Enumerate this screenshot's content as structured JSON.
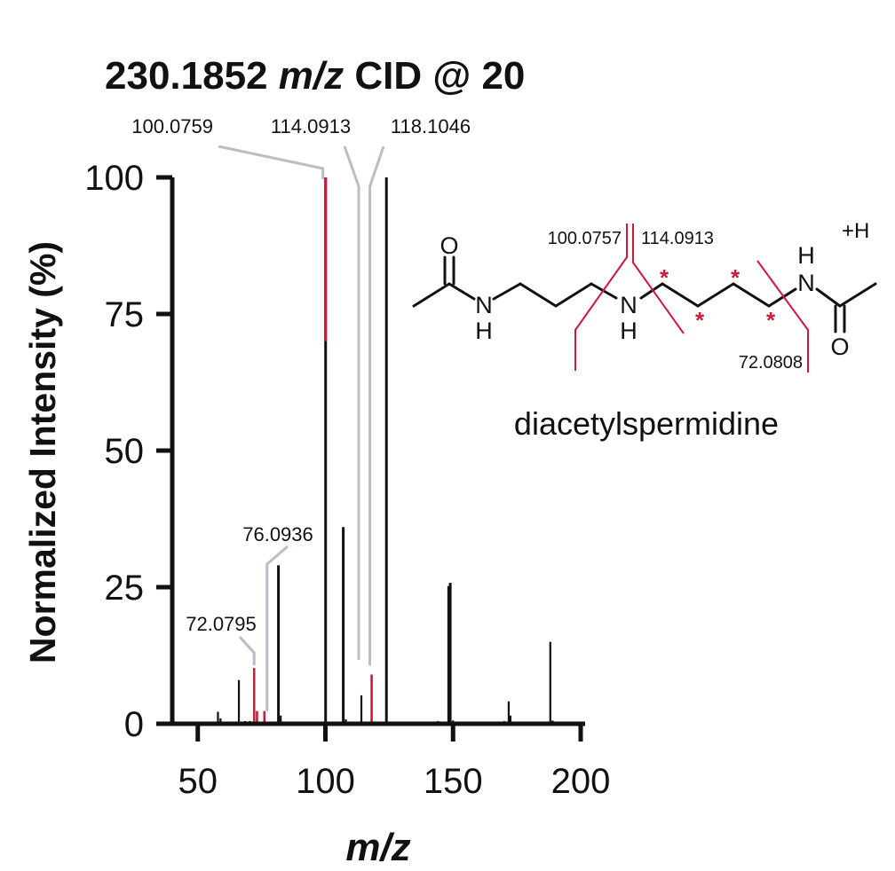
{
  "chart_data": {
    "type": "bar",
    "title": {
      "prefix": "230.1852 ",
      "italic": "m/z",
      "suffix": " CID @ 20"
    },
    "xlabel": "m/z",
    "ylabel": "Normalized Intensity (%)",
    "xlim": [
      40,
      200
    ],
    "ylim": [
      0,
      100
    ],
    "xticks": [
      50,
      100,
      150,
      200
    ],
    "yticks": [
      0,
      25,
      50,
      75,
      100
    ],
    "colors": {
      "peak": "#111111",
      "highlight": "#d0183c",
      "leader": "#b8bec6"
    },
    "peaks": [
      {
        "mz": 57.9,
        "intensity": 2.2,
        "highlight": 0
      },
      {
        "mz": 58.9,
        "intensity": 1.0,
        "highlight": 0
      },
      {
        "mz": 60.5,
        "intensity": 0.4,
        "highlight": 0
      },
      {
        "mz": 66.1,
        "intensity": 8.0,
        "highlight": 0
      },
      {
        "mz": 68.5,
        "intensity": 0.5,
        "highlight": 0
      },
      {
        "mz": 70.4,
        "intensity": 0.5,
        "highlight": 0
      },
      {
        "mz": 72.0795,
        "intensity": 10.2,
        "highlight": 10.2
      },
      {
        "mz": 73.2,
        "intensity": 2.3,
        "highlight": 2.3
      },
      {
        "mz": 76.0936,
        "intensity": 2.3,
        "highlight": 2.3
      },
      {
        "mz": 81.6,
        "intensity": 29.0,
        "highlight": 0
      },
      {
        "mz": 82.5,
        "intensity": 1.5,
        "highlight": 0
      },
      {
        "mz": 86.1,
        "intensity": 0.4,
        "highlight": 0
      },
      {
        "mz": 100.0759,
        "intensity": 100,
        "highlight": 30
      },
      {
        "mz": 103.1,
        "intensity": 0.3,
        "highlight": 0
      },
      {
        "mz": 107.0,
        "intensity": 36.0,
        "highlight": 0
      },
      {
        "mz": 108.0,
        "intensity": 0.8,
        "highlight": 0
      },
      {
        "mz": 110.1,
        "intensity": 0.4,
        "highlight": 0
      },
      {
        "mz": 113.0,
        "intensity": 0.4,
        "highlight": 0
      },
      {
        "mz": 114.0913,
        "intensity": 5.2,
        "highlight": 0
      },
      {
        "mz": 118.1046,
        "intensity": 9.0,
        "highlight": 9.0
      },
      {
        "mz": 123.9,
        "intensity": 100,
        "highlight": 0
      },
      {
        "mz": 129.0,
        "intensity": 0.4,
        "highlight": 0
      },
      {
        "mz": 133.0,
        "intensity": 0.4,
        "highlight": 0
      },
      {
        "mz": 138.1,
        "intensity": 0.4,
        "highlight": 0
      },
      {
        "mz": 144.1,
        "intensity": 0.5,
        "highlight": 0
      },
      {
        "mz": 148.3,
        "intensity": 25.2,
        "highlight": 0
      },
      {
        "mz": 148.9,
        "intensity": 25.8,
        "highlight": 0
      },
      {
        "mz": 150.0,
        "intensity": 0.6,
        "highlight": 0
      },
      {
        "mz": 155.0,
        "intensity": 0.3,
        "highlight": 0
      },
      {
        "mz": 160.1,
        "intensity": 0.4,
        "highlight": 0
      },
      {
        "mz": 170.1,
        "intensity": 0.5,
        "highlight": 0.5
      },
      {
        "mz": 171.8,
        "intensity": 4.1,
        "highlight": 0
      },
      {
        "mz": 172.5,
        "intensity": 1.5,
        "highlight": 0
      },
      {
        "mz": 176.0,
        "intensity": 0.4,
        "highlight": 0
      },
      {
        "mz": 186.0,
        "intensity": 0.4,
        "highlight": 0
      },
      {
        "mz": 188.1,
        "intensity": 15.0,
        "highlight": 0
      },
      {
        "mz": 189.0,
        "intensity": 0.6,
        "highlight": 0
      }
    ],
    "peak_labels": [
      {
        "text": "100.0759",
        "mz": 100.0759,
        "intensity": 100
      },
      {
        "text": "114.0913",
        "mz": 114.0913,
        "intensity": 5.2
      },
      {
        "text": "118.1046",
        "mz": 118.1046,
        "intensity": 9.0
      },
      {
        "text": "76.0936",
        "mz": 76.0936,
        "intensity": 2.3
      },
      {
        "text": "72.0795",
        "mz": 72.0795,
        "intensity": 10.2
      }
    ]
  },
  "structure": {
    "name": "diacetylspermidine",
    "charge": "+H",
    "fragment_labels": {
      "left": "100.0757",
      "middle": "114.0913",
      "right": "72.0808"
    },
    "atoms": {
      "oxygen": "O",
      "nitrogen": "N",
      "hydrogen": "H"
    },
    "label_site_mark": "*",
    "colors": {
      "bond": "#111111",
      "cleavage": "#d0183c",
      "star": "#d0183c"
    }
  }
}
